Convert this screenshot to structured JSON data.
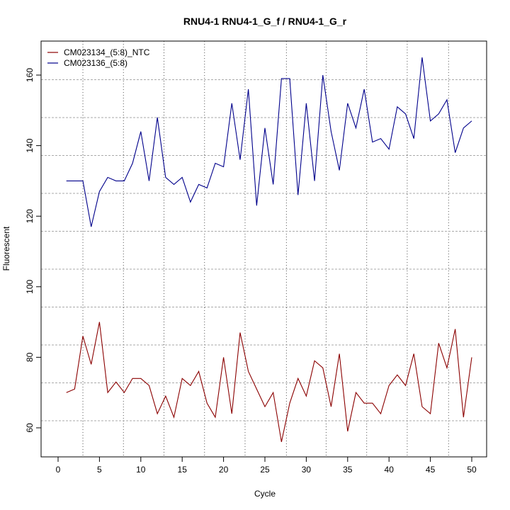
{
  "chart_data": {
    "type": "line",
    "title": "RNU4-1  RNU4-1_G_f / RNU4-1_G_r",
    "xlabel": "Cycle",
    "ylabel": "Fluorescent",
    "xlim": [
      -2,
      52
    ],
    "ylim": [
      51.3,
      169.3
    ],
    "x_ticks": [
      0,
      5,
      10,
      15,
      20,
      25,
      30,
      35,
      40,
      45,
      50
    ],
    "y_ticks": [
      60,
      80,
      100,
      120,
      140,
      160
    ],
    "grid": true,
    "legend_position": "top-left",
    "x": [
      1,
      2,
      3,
      4,
      5,
      6,
      7,
      8,
      9,
      10,
      11,
      12,
      13,
      14,
      15,
      16,
      17,
      18,
      19,
      20,
      21,
      22,
      23,
      24,
      25,
      26,
      27,
      28,
      29,
      30,
      31,
      32,
      33,
      34,
      35,
      36,
      37,
      38,
      39,
      40,
      41,
      42,
      43,
      44,
      45,
      46,
      47,
      48,
      49,
      50
    ],
    "series": [
      {
        "name": "CM023134_(5:8)_NTC",
        "color": "#8b0000",
        "values": [
          70,
          71,
          86,
          78,
          90,
          70,
          73,
          70,
          74,
          74,
          72,
          64,
          69,
          63,
          74,
          72,
          76,
          67,
          63,
          80,
          64,
          87,
          76,
          71,
          66,
          70,
          56,
          67,
          74,
          69,
          79,
          77,
          66,
          81,
          59,
          70,
          67,
          67,
          64,
          72,
          75,
          72,
          81,
          66,
          64,
          84,
          77,
          88,
          63,
          80
        ]
      },
      {
        "name": "CM023136_(5:8)",
        "color": "#00008b",
        "values": [
          130,
          130,
          130,
          117,
          127,
          131,
          130,
          130,
          135,
          144,
          130,
          148,
          131,
          129,
          131,
          124,
          129,
          128,
          135,
          134,
          152,
          136,
          156,
          123,
          145,
          129,
          159,
          159,
          126,
          152,
          130,
          160,
          144,
          133,
          152,
          145,
          156,
          141,
          142,
          139,
          151,
          149,
          142,
          165,
          147,
          149,
          153,
          138,
          145,
          147
        ]
      }
    ]
  }
}
